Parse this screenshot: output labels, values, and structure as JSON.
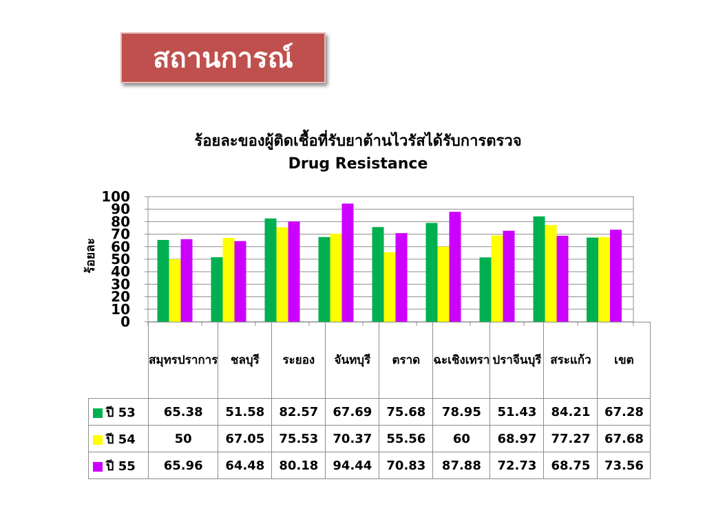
{
  "header": {
    "title": "สถานการณ์"
  },
  "chart_data": {
    "type": "bar",
    "title": "ร้อยละของผู้ติดเชื้อที่รับยาต้านไวรัสได้รับการตรวจ",
    "subtitle": "Drug Resistance",
    "ylabel": "ร้อยละ",
    "xlabel": "",
    "ylim": [
      0,
      100
    ],
    "yticks": [
      0,
      10,
      20,
      30,
      40,
      50,
      60,
      70,
      80,
      90,
      100
    ],
    "grid": true,
    "legend": "table",
    "categories": [
      "สมุทรปราการ",
      "ชลบุรี",
      "ระยอง",
      "จันทบุรี",
      "ตราด",
      "ฉะเชิงเทรา",
      "ปราจีนบุรี",
      "สระแก้ว",
      "เขต"
    ],
    "series": [
      {
        "name": "ปี 53",
        "color": "#00b050",
        "values": [
          65.38,
          51.58,
          82.57,
          67.69,
          75.68,
          78.95,
          51.43,
          84.21,
          67.28
        ]
      },
      {
        "name": "ปี 54",
        "color": "#ffff00",
        "values": [
          50,
          67.05,
          75.53,
          70.37,
          55.56,
          60,
          68.97,
          77.27,
          67.68
        ]
      },
      {
        "name": "ปี 55",
        "color": "#cc00ff",
        "values": [
          65.96,
          64.48,
          80.18,
          94.44,
          70.83,
          87.88,
          72.73,
          68.75,
          73.56
        ]
      }
    ]
  }
}
